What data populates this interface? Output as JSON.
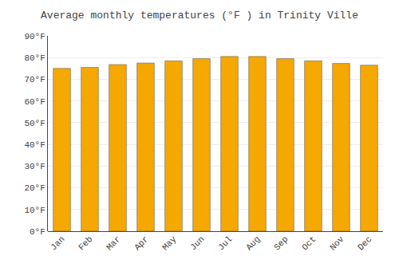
{
  "chart_data": {
    "type": "bar",
    "title": "Average monthly temperatures (°F ) in Trinity Ville",
    "categories": [
      "Jan",
      "Feb",
      "Mar",
      "Apr",
      "May",
      "Jun",
      "Jul",
      "Aug",
      "Sep",
      "Oct",
      "Nov",
      "Dec"
    ],
    "values": [
      75.0,
      75.5,
      76.8,
      77.5,
      78.5,
      79.5,
      80.5,
      80.5,
      79.5,
      78.5,
      77.3,
      76.5
    ],
    "color": "#F5A800",
    "ylim": [
      0,
      90
    ],
    "yticks": [
      {
        "value": 0,
        "label": "0°F"
      },
      {
        "value": 10,
        "label": "10°F"
      },
      {
        "value": 20,
        "label": "20°F"
      },
      {
        "value": 30,
        "label": "30°F"
      },
      {
        "value": 40,
        "label": "40°F"
      },
      {
        "value": 50,
        "label": "50°F"
      },
      {
        "value": 60,
        "label": "60°F"
      },
      {
        "value": 70,
        "label": "70°F"
      },
      {
        "value": 80,
        "label": "80°F"
      },
      {
        "value": 90,
        "label": "90°F"
      }
    ],
    "grid": true
  }
}
